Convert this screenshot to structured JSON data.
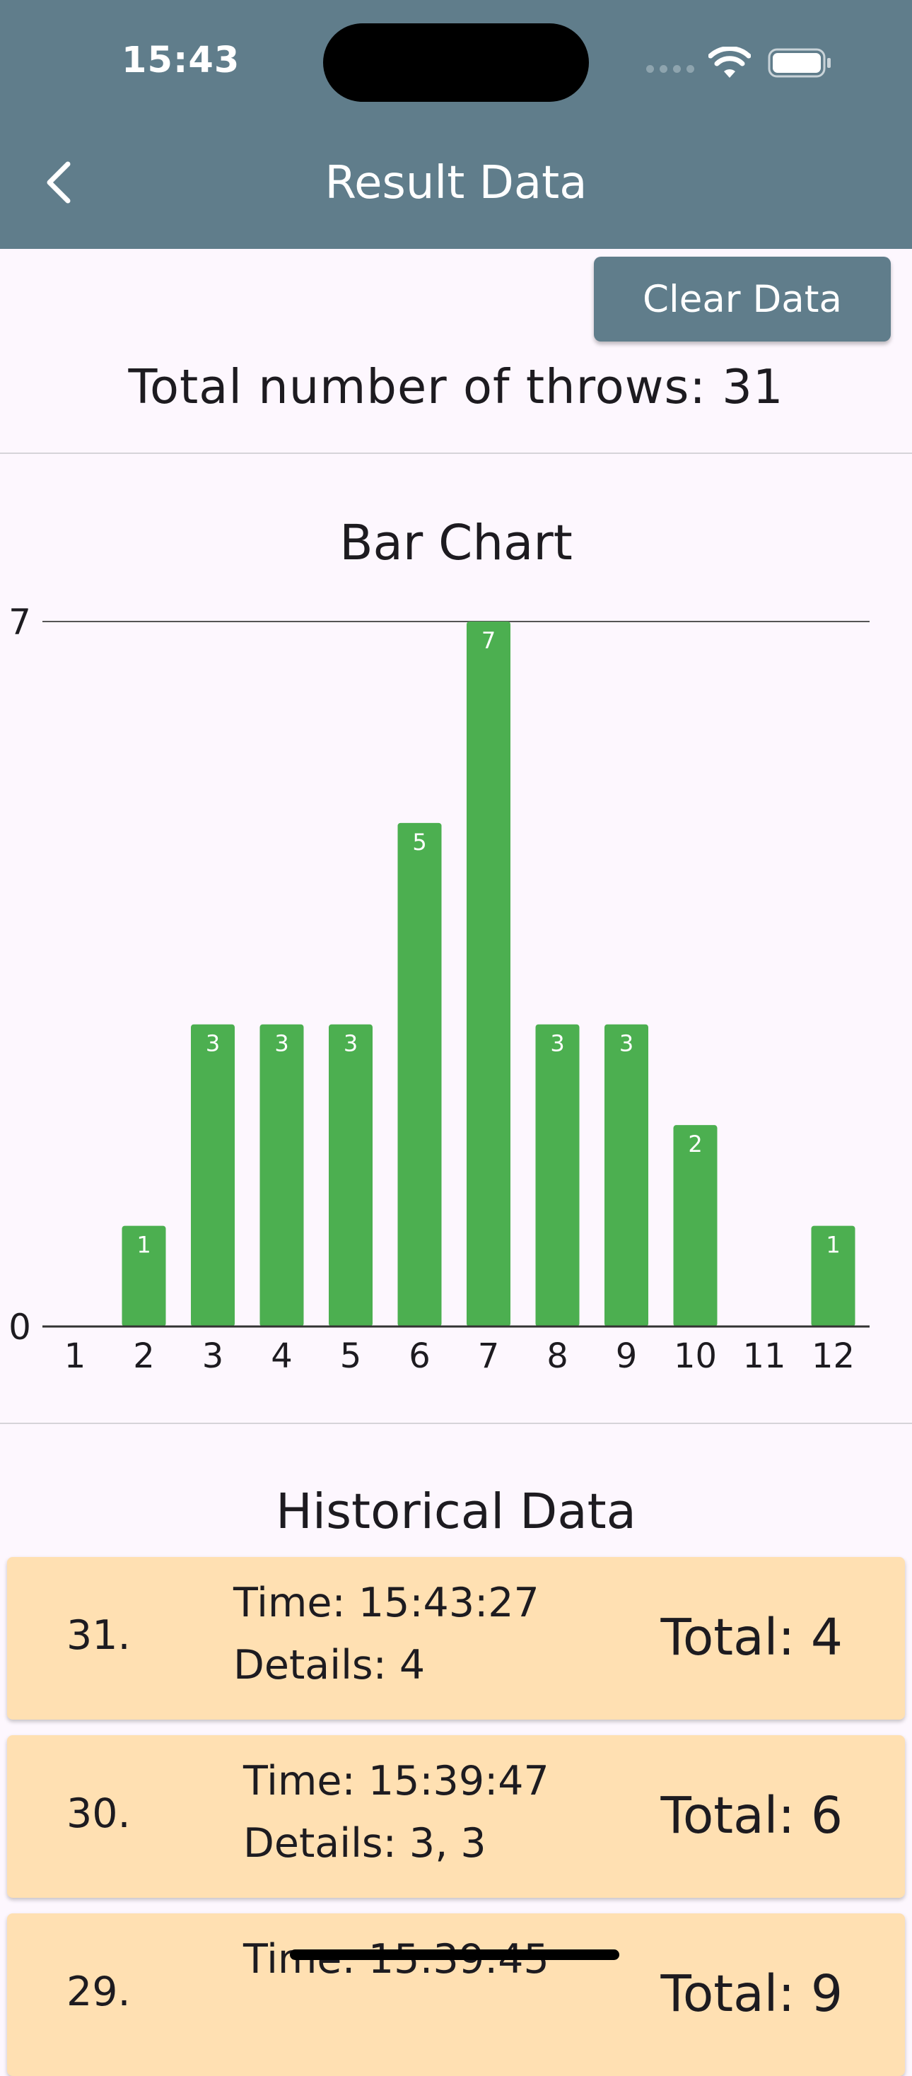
{
  "status_bar": {
    "time": "15:43"
  },
  "header": {
    "title": "Result Data"
  },
  "actions": {
    "clear_label": "Clear Data"
  },
  "summary": {
    "total_label": "Total number of throws: 31"
  },
  "chart_section": {
    "title": "Bar Chart"
  },
  "chart_data": {
    "type": "bar",
    "title": "Bar Chart",
    "categories": [
      "1",
      "2",
      "3",
      "4",
      "5",
      "6",
      "7",
      "8",
      "9",
      "10",
      "11",
      "12"
    ],
    "values": [
      0,
      1,
      3,
      3,
      3,
      5,
      7,
      3,
      3,
      2,
      0,
      1
    ],
    "y_ticks": [
      "0",
      "7"
    ],
    "ylim": [
      0,
      7
    ],
    "bar_color": "#4caf50",
    "data_labels": true,
    "grid": false
  },
  "history": {
    "title": "Historical Data",
    "entries": [
      {
        "index": "31.",
        "time": "Time: 15:43:27",
        "details": "Details: 4",
        "total": "Total: 4"
      },
      {
        "index": "30.",
        "time": "Time: 15:39:47",
        "details": "Details: 3, 3",
        "total": "Total: 6"
      },
      {
        "index": "29.",
        "time": "Time: 15:39:45",
        "details": "",
        "total": "Total: 9"
      }
    ]
  },
  "colors": {
    "app_bar": "#607d8b",
    "background": "#fdf7fe",
    "card": "#ffe0b2",
    "bar": "#4caf50"
  }
}
